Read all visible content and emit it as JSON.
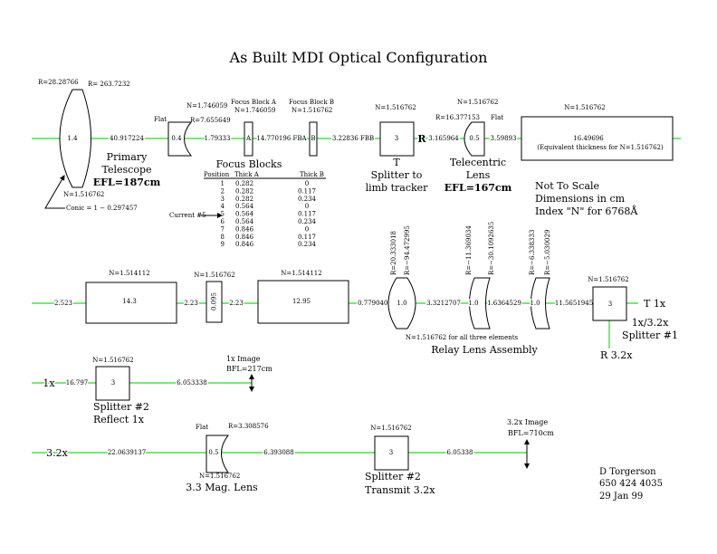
{
  "title": "As Built MDI Optical Configuration",
  "colors": {
    "optical_axis": "#22dd22",
    "ink": "#000000"
  },
  "row1": {
    "primary": {
      "thickness": "1.4",
      "r1": "R=28.28766",
      "r2": "R= 263.7232",
      "n": "N=1.516762",
      "conic": "Conic = 1 − 0.297457",
      "caption": [
        "Primary",
        "Telescope",
        "EFL=187cm"
      ]
    },
    "gap1": "40.917224",
    "neg_lens": {
      "thickness": "0.4",
      "flat": "Flat",
      "r": "R=7.655649",
      "n": "N=1.746059"
    },
    "gap2": "1.79333",
    "focus_a": {
      "label": "A",
      "name": "Focus Block A",
      "n": "N=1.746059"
    },
    "gap3": "14.770196 FBA",
    "focus_b": {
      "label": "B",
      "name": "Focus Block B",
      "n": "N=1.516762"
    },
    "gap4": "3.22836 FBB",
    "splitter": {
      "thickness": "3",
      "n": "N=1.516762",
      "r_label": "R",
      "caption": [
        "T",
        "Splitter to",
        "limb tracker"
      ]
    },
    "gap5": "3.165964",
    "telecentric": {
      "thickness": "0.5",
      "n": "N=1.516762",
      "r": "R=16.377153",
      "flat": "Flat",
      "caption": [
        "Telecentric",
        "Lens",
        "EFL=167cm"
      ]
    },
    "gap6": "3.59893",
    "block": {
      "thickness": "16.49696",
      "note": "(Equivalent thickness for N=1.516762)",
      "n": "N=1.516762"
    }
  },
  "focus_table": {
    "title": "Focus Blocks",
    "headers": [
      "Position",
      "Thick A",
      "Thick B"
    ],
    "current_label": "Current #5",
    "rows": [
      [
        "1",
        "0.282",
        "0"
      ],
      [
        "2",
        "0.282",
        "0.117"
      ],
      [
        "3",
        "0.282",
        "0.234"
      ],
      [
        "4",
        "0.564",
        "0"
      ],
      [
        "5",
        "0.564",
        "0.117"
      ],
      [
        "6",
        "0.564",
        "0.234"
      ],
      [
        "7",
        "0.846",
        "0"
      ],
      [
        "8",
        "0.846",
        "0.117"
      ],
      [
        "9",
        "0.846",
        "0.234"
      ]
    ]
  },
  "notes": [
    "Not To Scale",
    "Dimensions in cm",
    "Index \"N\" for 6768Å"
  ],
  "row2": {
    "gap0": "2.523",
    "block1": {
      "thickness": "14.3",
      "n": "N=1.514112"
    },
    "gap1": "2.23",
    "plate": {
      "thickness": "0.095",
      "n": "N=1.516762"
    },
    "gap2": "2.23",
    "block2": {
      "thickness": "12.95",
      "n": "N=1.514112"
    },
    "gap3": "0.7790401",
    "relay1": {
      "thickness": "1.0",
      "r1": "R=20.333018",
      "r2": "R=−94.472995"
    },
    "gap4": "3.3212707",
    "relay2": {
      "thickness": "1.0",
      "r1": "R=−11.369034",
      "r2": "R=−30.1092635"
    },
    "gap5": "1.6364529",
    "relay3": {
      "thickness": "1.0",
      "r1": "R=−6.338333",
      "r2": "R=−5.030029"
    },
    "gap6": "11.5651945",
    "relay_n": "N=1.516762 for all three elements",
    "relay_caption": "Relay Lens Assembly",
    "splitter": {
      "thickness": "3",
      "n": "N=1.516762",
      "transmit": "T 1x",
      "reflect": "R 3.2x",
      "caption": [
        "1x/3.2x",
        "Splitter #1"
      ]
    }
  },
  "row3": {
    "input": "1x",
    "gap1": "16.797",
    "splitter": {
      "thickness": "3",
      "n": "N=1.516762",
      "caption": [
        "Splitter #2",
        "Reflect 1x"
      ]
    },
    "gap2": "6.053338",
    "image": [
      "1x Image",
      "BFL=217cm"
    ]
  },
  "row4": {
    "input": "3.2x",
    "gap1": "22.0639137",
    "lens": {
      "thickness": "0.5",
      "flat": "Flat",
      "r": "R=3.308576",
      "n": "N=1.516762",
      "caption": "3.3 Mag. Lens"
    },
    "gap2": "6.393088",
    "splitter": {
      "thickness": "3",
      "n": "N=1.516762",
      "caption": [
        "Splitter #2",
        "Transmit 3.2x"
      ]
    },
    "gap3": "6.05338",
    "image": [
      "3.2x Image",
      "BFL=710cm"
    ]
  },
  "author": [
    "D Torgerson",
    "650 424 4035",
    "29 Jan 99"
  ]
}
